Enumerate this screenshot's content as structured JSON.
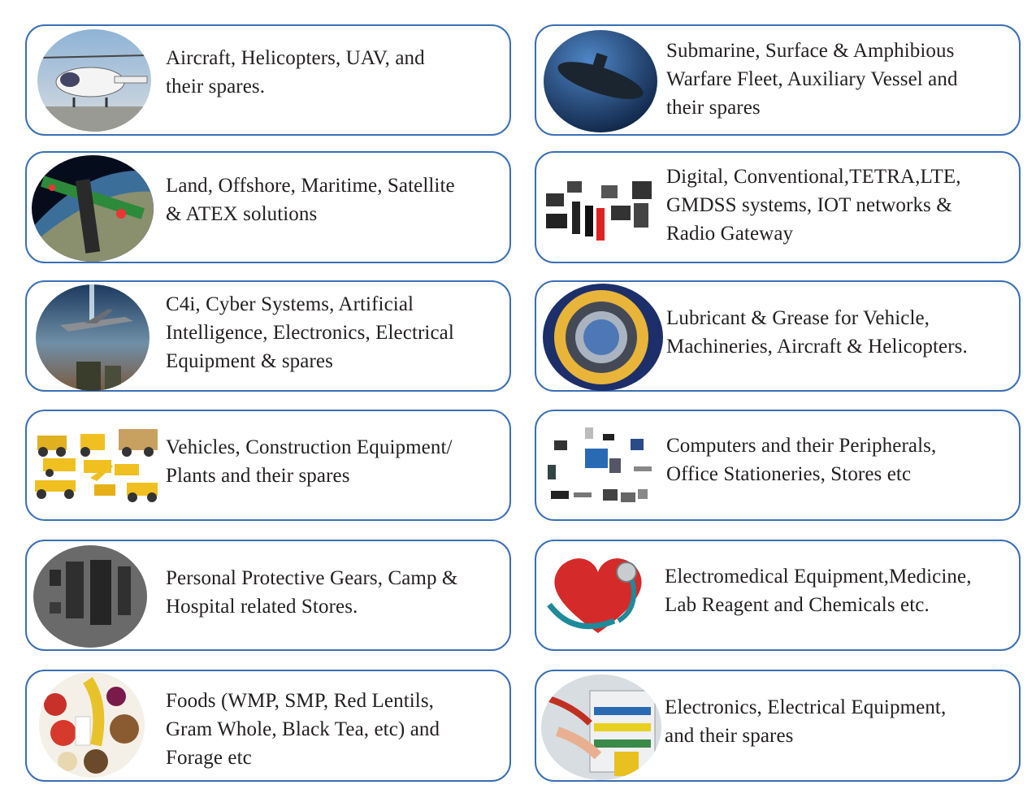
{
  "cards": [
    {
      "text": "Aircraft,  Helicopters,  UAV,  and\ntheir  spares.",
      "icon": "helicopter-image"
    },
    {
      "text": "Submarine, Surface &  Amphibious\nWarfare Fleet,  Auxiliary Vessel and\n their  spares",
      "icon": "submarine-image"
    },
    {
      "text": "Land, Offshore, Maritime, Satellite\n& ATEX solutions",
      "icon": "satellite-image"
    },
    {
      "text": "Digital, Conventional,TETRA,LTE,\nGMDSS systems, IOT networks &\nRadio Gateway",
      "icon": "radio-devices-image"
    },
    {
      "text": "C4i, Cyber Systems, Artificial\nIntelligence, Electronics, Electrical\nEquipment & spares",
      "icon": "fighter-jet-image"
    },
    {
      "text": "Lubricant & Grease for Vehicle,\nMachineries, Aircraft & Helicopters.",
      "icon": "bearing-grease-image"
    },
    {
      "text": "Vehicles, Construction Equipment/\nPlants and their spares",
      "icon": "construction-vehicles-image"
    },
    {
      "text": "Computers and their Peripherals,\nOffice Stationeries, Stores etc",
      "icon": "computers-image"
    },
    {
      "text": "Personal Protective Gears, Camp &\nHospital related Stores.",
      "icon": "protective-gear-image"
    },
    {
      "text": "Electromedical Equipment,Medicine,\nLab Reagent and Chemicals etc.",
      "icon": "heart-stethoscope-image"
    },
    {
      "text": "Foods (WMP, SMP, Red Lentils,\nGram Whole,  Black Tea,  etc) and\nForage etc",
      "icon": "foods-image"
    },
    {
      "text": "Electronics, Electrical Equipment,\nand their spares",
      "icon": "electrical-panel-image"
    }
  ]
}
